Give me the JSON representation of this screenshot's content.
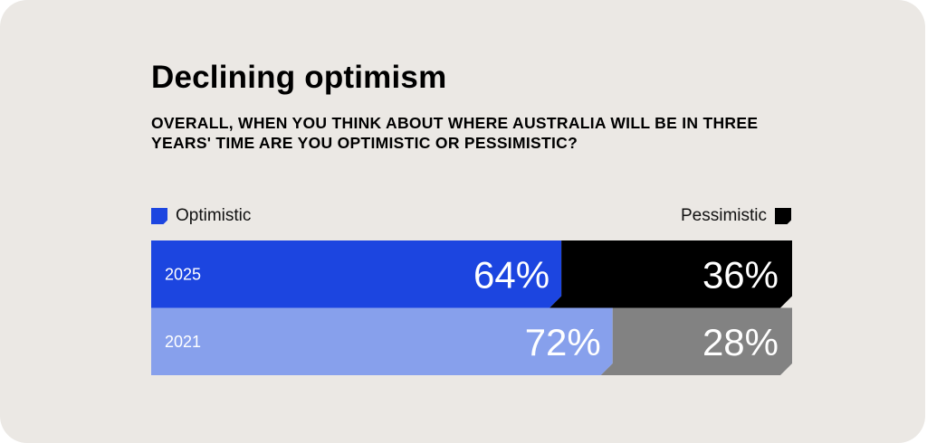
{
  "chart_data": {
    "type": "bar",
    "orientation": "horizontal",
    "stacked": true,
    "title": "Declining optimism",
    "subtitle": "OVERALL, WHEN YOU THINK ABOUT WHERE AUSTRALIA WILL BE IN THREE YEARS' TIME ARE YOU OPTIMISTIC OR PESSIMISTIC?",
    "categories": [
      "2025",
      "2021"
    ],
    "series": [
      {
        "name": "Optimistic",
        "values": [
          64,
          72
        ],
        "labels": [
          "64%",
          "72%"
        ],
        "colors": [
          "#1c45e0",
          "#87a0ec"
        ]
      },
      {
        "name": "Pessimistic",
        "values": [
          36,
          28
        ],
        "labels": [
          "36%",
          "28%"
        ],
        "colors": [
          "#000000",
          "#828282"
        ]
      }
    ],
    "xlim": [
      0,
      100
    ],
    "grid": false,
    "legend": {
      "optimistic_position": "top-left",
      "pessimistic_position": "top-right",
      "optimistic_color": "#1c45e0",
      "pessimistic_color": "#000000"
    }
  }
}
